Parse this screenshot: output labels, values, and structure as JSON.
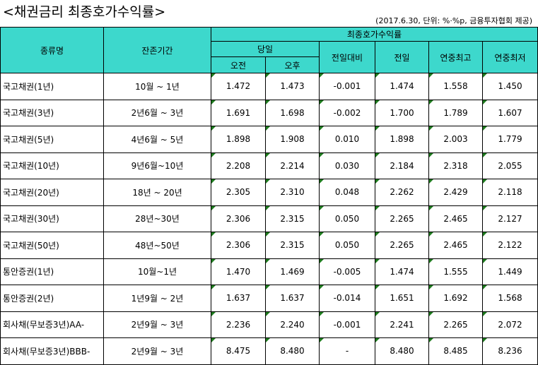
{
  "title": "<채권금리 최종호가수익률>",
  "meta": "(2017.6.30, 단위: %·%p, 금융투자협회 제공)",
  "headers": {
    "type": "종류명",
    "maturity": "잔존기간",
    "yield_group": "최종호가수익률",
    "today": "당일",
    "morning": "오전",
    "afternoon": "오후",
    "change": "전일대비",
    "prev_day": "전일",
    "year_high": "연중최고",
    "year_low": "연중최저"
  },
  "rows": [
    {
      "name": "국고채권(1년)",
      "maturity": "10월 ~ 1년",
      "am": "1.472",
      "pm": "1.473",
      "change": "-0.001",
      "prev": "1.474",
      "high": "1.558",
      "low": "1.450"
    },
    {
      "name": "국고채권(3년)",
      "maturity": "2년6월 ~ 3년",
      "am": "1.691",
      "pm": "1.698",
      "change": "-0.002",
      "prev": "1.700",
      "high": "1.789",
      "low": "1.607"
    },
    {
      "name": "국고채권(5년)",
      "maturity": "4년6월 ~ 5년",
      "am": "1.898",
      "pm": "1.908",
      "change": "0.010",
      "prev": "1.898",
      "high": "2.003",
      "low": "1.779"
    },
    {
      "name": "국고채권(10년)",
      "maturity": "9년6월~10년",
      "am": "2.208",
      "pm": "2.214",
      "change": "0.030",
      "prev": "2.184",
      "high": "2.318",
      "low": "2.055"
    },
    {
      "name": "국고채권(20년)",
      "maturity": "18년 ~ 20년",
      "am": "2.305",
      "pm": "2.310",
      "change": "0.048",
      "prev": "2.262",
      "high": "2.429",
      "low": "2.118"
    },
    {
      "name": "국고채권(30년)",
      "maturity": "28년~30년",
      "am": "2.306",
      "pm": "2.315",
      "change": "0.050",
      "prev": "2.265",
      "high": "2.465",
      "low": "2.127"
    },
    {
      "name": "국고채권(50년)",
      "maturity": "48년~50년",
      "am": "2.306",
      "pm": "2.315",
      "change": "0.050",
      "prev": "2.265",
      "high": "2.465",
      "low": "2.122"
    },
    {
      "name": "통안증권(1년)",
      "maturity": "10월~1년",
      "am": "1.470",
      "pm": "1.469",
      "change": "-0.005",
      "prev": "1.474",
      "high": "1.555",
      "low": "1.449"
    },
    {
      "name": "통안증권(2년)",
      "maturity": "1년9월 ~ 2년",
      "am": "1.637",
      "pm": "1.637",
      "change": "-0.014",
      "prev": "1.651",
      "high": "1.692",
      "low": "1.568"
    },
    {
      "name": "회사채(무보증3년)AA-",
      "maturity": "2년9월 ~ 3년",
      "am": "2.236",
      "pm": "2.240",
      "change": "-0.001",
      "prev": "2.241",
      "high": "2.265",
      "low": "2.072"
    },
    {
      "name": "회사채(무보증3년)BBB-",
      "maturity": "2년9월 ~ 3년",
      "am": "8.475",
      "pm": "8.480",
      "change": "-",
      "prev": "8.480",
      "high": "8.485",
      "low": "8.236"
    }
  ]
}
